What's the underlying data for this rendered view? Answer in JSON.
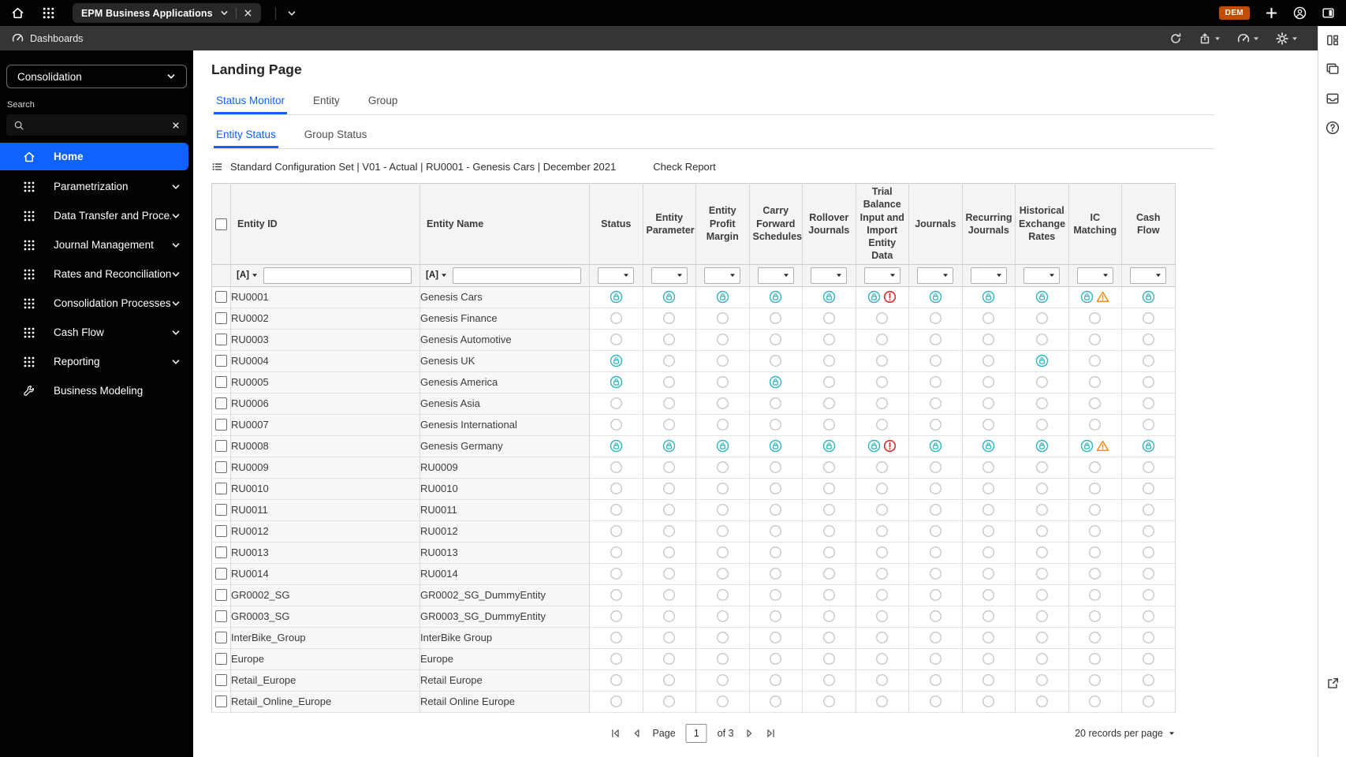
{
  "colors": {
    "accent": "#0f62fe",
    "teal": "#2fb4c2",
    "red": "#df2b2b",
    "orange": "#f0860c",
    "dem_badge": "#c14e07"
  },
  "topbar": {
    "app_tab": "EPM Business Applications",
    "dem_badge": "DEM"
  },
  "toolbar": {
    "breadcrumb": "Dashboards"
  },
  "sidebar": {
    "module_selector": "Consolidation",
    "search_label": "Search",
    "items": [
      {
        "label": "Home",
        "icon": "home",
        "chevron": false,
        "active": true
      },
      {
        "label": "Parametrization",
        "icon": "grid",
        "chevron": true,
        "active": false
      },
      {
        "label": "Data Transfer and Proce...",
        "icon": "grid",
        "chevron": true,
        "active": false
      },
      {
        "label": "Journal Management",
        "icon": "grid",
        "chevron": true,
        "active": false
      },
      {
        "label": "Rates and Reconciliation",
        "icon": "grid",
        "chevron": true,
        "active": false
      },
      {
        "label": "Consolidation Processes",
        "icon": "grid",
        "chevron": true,
        "active": false
      },
      {
        "label": "Cash Flow",
        "icon": "grid",
        "chevron": true,
        "active": false
      },
      {
        "label": "Reporting",
        "icon": "grid",
        "chevron": true,
        "active": false
      },
      {
        "label": "Business Modeling",
        "icon": "tools",
        "chevron": false,
        "active": false
      }
    ]
  },
  "main": {
    "title": "Landing Page",
    "tabs": [
      "Status Monitor",
      "Entity",
      "Group"
    ],
    "active_tab": 0,
    "subtabs": [
      "Entity Status",
      "Group Status"
    ],
    "active_subtab": 0,
    "context_line": "Standard Configuration Set | V01 - Actual | RU0001 - Genesis Cars | December 2021",
    "check_report": "Check Report"
  },
  "table": {
    "filter_prefix": "[A]",
    "columns": [
      "Entity ID",
      "Entity Name",
      "Status",
      "Entity Parameter",
      "Entity Profit Margin",
      "Carry Forward Schedules",
      "Rollover Journals",
      "Trial Balance Input and Import Entity Data",
      "Journals",
      "Recurring Journals",
      "Historical Exchange Rates",
      "IC Matching",
      "Cash Flow"
    ],
    "status_legend": {
      "L": "locked",
      "O": "open",
      "LE": "locked-with-error",
      "LW": "locked-with-warning"
    },
    "rows": [
      {
        "id": "RU0001",
        "name": "Genesis Cars",
        "cells": [
          "L",
          "L",
          "L",
          "L",
          "L",
          "LE",
          "L",
          "L",
          "L",
          "LW",
          "L"
        ]
      },
      {
        "id": "RU0002",
        "name": "Genesis Finance",
        "cells": [
          "O",
          "O",
          "O",
          "O",
          "O",
          "O",
          "O",
          "O",
          "O",
          "O",
          "O"
        ]
      },
      {
        "id": "RU0003",
        "name": "Genesis Automotive",
        "cells": [
          "O",
          "O",
          "O",
          "O",
          "O",
          "O",
          "O",
          "O",
          "O",
          "O",
          "O"
        ]
      },
      {
        "id": "RU0004",
        "name": "Genesis UK",
        "cells": [
          "L",
          "O",
          "O",
          "O",
          "O",
          "O",
          "O",
          "O",
          "L",
          "O",
          "O"
        ]
      },
      {
        "id": "RU0005",
        "name": "Genesis America",
        "cells": [
          "L",
          "O",
          "O",
          "L",
          "O",
          "O",
          "O",
          "O",
          "O",
          "O",
          "O"
        ]
      },
      {
        "id": "RU0006",
        "name": "Genesis Asia",
        "cells": [
          "O",
          "O",
          "O",
          "O",
          "O",
          "O",
          "O",
          "O",
          "O",
          "O",
          "O"
        ]
      },
      {
        "id": "RU0007",
        "name": "Genesis International",
        "cells": [
          "O",
          "O",
          "O",
          "O",
          "O",
          "O",
          "O",
          "O",
          "O",
          "O",
          "O"
        ]
      },
      {
        "id": "RU0008",
        "name": "Genesis Germany",
        "cells": [
          "L",
          "L",
          "L",
          "L",
          "L",
          "LE",
          "L",
          "L",
          "L",
          "LW",
          "L"
        ]
      },
      {
        "id": "RU0009",
        "name": "RU0009",
        "cells": [
          "O",
          "O",
          "O",
          "O",
          "O",
          "O",
          "O",
          "O",
          "O",
          "O",
          "O"
        ]
      },
      {
        "id": "RU0010",
        "name": "RU0010",
        "cells": [
          "O",
          "O",
          "O",
          "O",
          "O",
          "O",
          "O",
          "O",
          "O",
          "O",
          "O"
        ]
      },
      {
        "id": "RU0011",
        "name": "RU0011",
        "cells": [
          "O",
          "O",
          "O",
          "O",
          "O",
          "O",
          "O",
          "O",
          "O",
          "O",
          "O"
        ]
      },
      {
        "id": "RU0012",
        "name": "RU0012",
        "cells": [
          "O",
          "O",
          "O",
          "O",
          "O",
          "O",
          "O",
          "O",
          "O",
          "O",
          "O"
        ]
      },
      {
        "id": "RU0013",
        "name": "RU0013",
        "cells": [
          "O",
          "O",
          "O",
          "O",
          "O",
          "O",
          "O",
          "O",
          "O",
          "O",
          "O"
        ]
      },
      {
        "id": "RU0014",
        "name": "RU0014",
        "cells": [
          "O",
          "O",
          "O",
          "O",
          "O",
          "O",
          "O",
          "O",
          "O",
          "O",
          "O"
        ]
      },
      {
        "id": "GR0002_SG",
        "name": "GR0002_SG_DummyEntity",
        "cells": [
          "O",
          "O",
          "O",
          "O",
          "O",
          "O",
          "O",
          "O",
          "O",
          "O",
          "O"
        ]
      },
      {
        "id": "GR0003_SG",
        "name": "GR0003_SG_DummyEntity",
        "cells": [
          "O",
          "O",
          "O",
          "O",
          "O",
          "O",
          "O",
          "O",
          "O",
          "O",
          "O"
        ]
      },
      {
        "id": "InterBike_Group",
        "name": "InterBike Group",
        "cells": [
          "O",
          "O",
          "O",
          "O",
          "O",
          "O",
          "O",
          "O",
          "O",
          "O",
          "O"
        ]
      },
      {
        "id": "Europe",
        "name": "Europe",
        "cells": [
          "O",
          "O",
          "O",
          "O",
          "O",
          "O",
          "O",
          "O",
          "O",
          "O",
          "O"
        ]
      },
      {
        "id": "Retail_Europe",
        "name": "Retail Europe",
        "cells": [
          "O",
          "O",
          "O",
          "O",
          "O",
          "O",
          "O",
          "O",
          "O",
          "O",
          "O"
        ]
      },
      {
        "id": "Retail_Online_Europe",
        "name": "Retail Online Europe",
        "cells": [
          "O",
          "O",
          "O",
          "O",
          "O",
          "O",
          "O",
          "O",
          "O",
          "O",
          "O"
        ]
      }
    ]
  },
  "pagination": {
    "page_label": "Page",
    "page_value": "1",
    "of_label": "of 3",
    "records_label": "20 records per page"
  },
  "icons": {
    "home-icon": "house outline",
    "app-switcher-icon": "3x3 dot waffle",
    "chevron-down-icon": "v chevron",
    "close-icon": "x cross",
    "add-icon": "plus",
    "user-avatar-icon": "person in circle",
    "panel-toggle-icon": "square with filled right half",
    "dashboards-icon": "speedometer gauge",
    "refresh-icon": "circular arrow",
    "export-icon": "box with up arrow",
    "settings-gear-icon": "gear",
    "builder-panel-icon": "layout panels",
    "comments-icon": "overlapping pages",
    "notifications-inbox-icon": "inbox tray",
    "help-icon": "question mark in circle",
    "open-external-icon": "box with outward arrow",
    "search-icon": "magnifier",
    "context-list-icon": "bulleted list",
    "business-modeling-icon": "wrench tool",
    "locked-status-icon": "teal circled padlock",
    "open-status-icon": "gray empty circle",
    "error-icon": "red exclamation circle",
    "warning-icon": "orange exclamation triangle"
  }
}
